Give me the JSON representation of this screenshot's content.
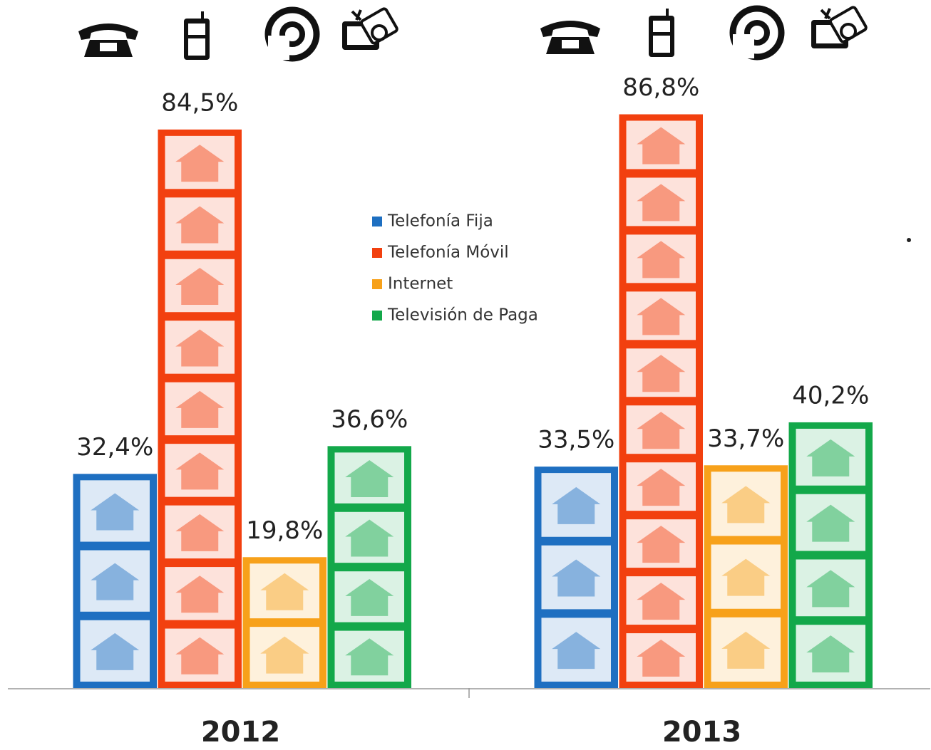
{
  "chart_data": {
    "type": "bar",
    "categories": [
      "2012",
      "2013"
    ],
    "series": [
      {
        "name": "Telefonía Fija",
        "color": "#1e6fc1",
        "values": [
          32.4,
          33.5
        ],
        "value_labels": [
          "32,4%",
          "33,5%"
        ]
      },
      {
        "name": "Telefonía Móvil",
        "color": "#f2400f",
        "values": [
          84.5,
          86.8
        ],
        "value_labels": [
          "84,5%",
          "86,8%"
        ]
      },
      {
        "name": "Internet",
        "color": "#f7a11a",
        "values": [
          19.8,
          33.7
        ],
        "value_labels": [
          "19,8%",
          "33,7%"
        ]
      },
      {
        "name": "Televisión de Paga",
        "color": "#13a84a",
        "values": [
          36.6,
          40.2
        ],
        "value_labels": [
          "36,6%",
          "40,2%"
        ]
      }
    ],
    "ylim": [
      0,
      100
    ],
    "legend": "center"
  }
}
